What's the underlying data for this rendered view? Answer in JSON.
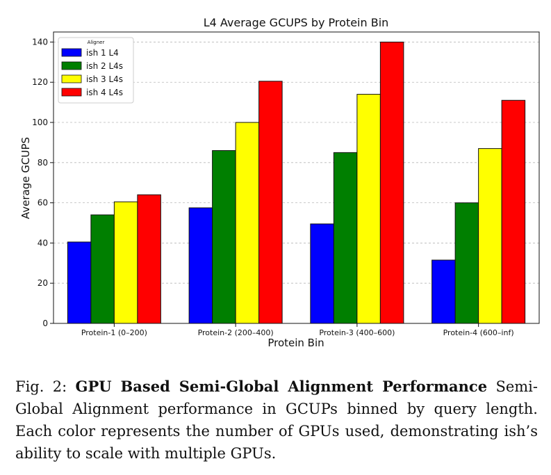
{
  "chart_data": {
    "type": "bar",
    "title": "L4 Average GCUPS by Protein Bin",
    "xlabel": "Protein Bin",
    "ylabel": "Average GCUPS",
    "ylim": [
      0,
      145
    ],
    "yticks": [
      0,
      20,
      40,
      60,
      80,
      100,
      120,
      140
    ],
    "grid": "horizontal dashed",
    "categories": [
      "Protein-1 (0–200)",
      "Protein-2 (200–400)",
      "Protein-3 (400–600)",
      "Protein-4 (600–inf)"
    ],
    "legend": {
      "title": "Aligner",
      "position": "top-left"
    },
    "series": [
      {
        "name": "ish 1 L4",
        "color": "#0000ff",
        "values": [
          40.5,
          57.5,
          49.5,
          31.5
        ]
      },
      {
        "name": "ish 2 L4s",
        "color": "#007f00",
        "values": [
          54.0,
          86.0,
          85.0,
          60.0
        ]
      },
      {
        "name": "ish 3 L4s",
        "color": "#ffff00",
        "values": [
          60.5,
          100.0,
          114.0,
          87.0
        ]
      },
      {
        "name": "ish 4 L4s",
        "color": "#ff0000",
        "values": [
          64.0,
          120.5,
          140.0,
          111.0
        ]
      }
    ]
  },
  "caption": {
    "label": "Fig. 2: ",
    "title": "GPU Based Semi-Global Alignment Performance",
    "text": "Semi-Global Alignment performance in GCUPs binned by query length. Each color represents the number of GPUs used, demonstrating ish’s ability to scale with multiple GPUs."
  }
}
